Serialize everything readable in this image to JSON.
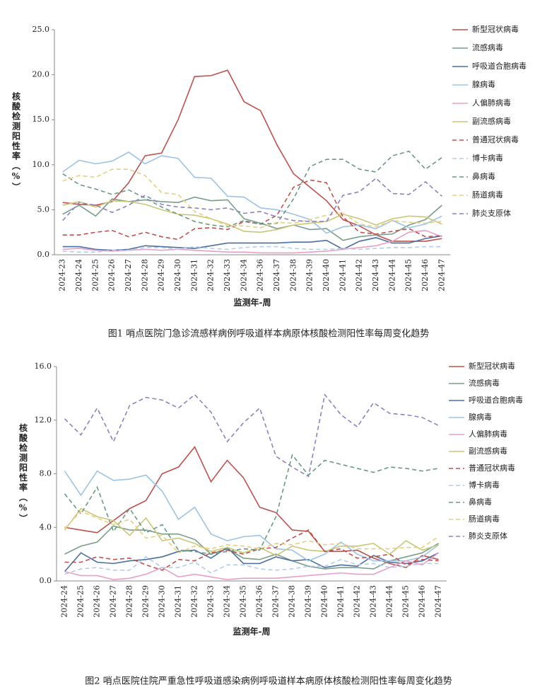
{
  "chart_data": [
    {
      "type": "line",
      "title": "图1   哨点医院门急诊流感样病例呼吸道样本病原体核酸检测阳性率每周变化趋势",
      "x_label": "监测年-周",
      "y_label": "核酸检测阳性率（%）",
      "categories": [
        "2024-23",
        "2024-24",
        "2024-25",
        "2024-26",
        "2024-27",
        "2024-28",
        "2024-29",
        "2024-30",
        "2024-31",
        "2024-32",
        "2024-33",
        "2024-34",
        "2024-36",
        "2024-37",
        "2024-38",
        "2024-39",
        "2024-40",
        "2024-41",
        "2024-42",
        "2024-43",
        "2024-44",
        "2024-45",
        "2024-46",
        "2024-47"
      ],
      "ylim": [
        0,
        25
      ],
      "yticks": [
        {
          "value": 0,
          "label": "0.0"
        },
        {
          "value": 5,
          "label": "5.0"
        },
        {
          "value": 10,
          "label": "10.0"
        },
        {
          "value": 15,
          "label": "15.0"
        },
        {
          "value": 20,
          "label": "20.0"
        },
        {
          "value": 25,
          "label": "25.0"
        }
      ],
      "series": [
        {
          "name": "新型冠状病毒",
          "color": "#c0504d",
          "dash": false,
          "values": [
            5.8,
            5.6,
            5.5,
            5.9,
            8.0,
            11.0,
            11.3,
            15.0,
            19.8,
            19.9,
            20.5,
            17.0,
            16.0,
            12.2,
            9.0,
            7.5,
            6.0,
            3.9,
            3.2,
            2.2,
            1.5,
            1.5,
            1.5,
            1.8
          ]
        },
        {
          "name": "流感病毒",
          "color": "#7a9e8a",
          "dash": false,
          "values": [
            4.5,
            5.5,
            4.3,
            6.2,
            5.9,
            6.1,
            5.9,
            5.8,
            6.4,
            6.0,
            6.1,
            4.0,
            3.5,
            2.9,
            3.3,
            2.8,
            2.9,
            1.6,
            2.0,
            2.2,
            2.3,
            3.3,
            3.9,
            5.5
          ]
        },
        {
          "name": "呼吸道合胞病毒",
          "color": "#4a6fa0",
          "dash": false,
          "values": [
            0.9,
            0.9,
            0.6,
            0.5,
            0.6,
            1.0,
            0.9,
            0.8,
            0.7,
            1.0,
            1.3,
            1.3,
            1.3,
            1.3,
            1.4,
            1.4,
            1.6,
            0.6,
            1.5,
            1.9,
            1.3,
            1.3,
            1.8,
            2.1
          ]
        },
        {
          "name": "腺病毒",
          "color": "#9dc3e6",
          "dash": false,
          "values": [
            9.2,
            10.5,
            10.1,
            10.4,
            11.4,
            10.1,
            11.0,
            10.7,
            8.6,
            8.5,
            6.5,
            6.4,
            5.2,
            5.0,
            4.5,
            3.9,
            2.4,
            3.1,
            3.3,
            2.9,
            3.8,
            3.0,
            3.4,
            4.3
          ]
        },
        {
          "name": "人偏肺病毒",
          "color": "#e6a0c8",
          "dash": false,
          "values": [
            0.6,
            0.7,
            0.5,
            0.4,
            0.5,
            0.6,
            0.5,
            0.6,
            0.5,
            0.4,
            0.3,
            0.3,
            0.2,
            0.2,
            0.2,
            0.3,
            0.4,
            0.6,
            0.8,
            1.0,
            1.5,
            2.5,
            2.7,
            2.0
          ]
        },
        {
          "name": "副流感病毒",
          "color": "#c8c878",
          "dash": false,
          "values": [
            5.5,
            5.9,
            5.3,
            6.0,
            5.9,
            5.6,
            5.0,
            4.5,
            4.4,
            4.0,
            3.4,
            2.6,
            2.5,
            2.8,
            3.3,
            3.5,
            3.7,
            4.5,
            4.0,
            3.3,
            4.0,
            4.3,
            4.2,
            3.4
          ]
        },
        {
          "name": "普通冠状病毒",
          "color": "#c0504d",
          "dash": true,
          "values": [
            2.2,
            2.2,
            2.5,
            2.7,
            2.0,
            2.5,
            2.0,
            1.7,
            2.9,
            3.0,
            2.8,
            3.7,
            3.4,
            4.4,
            7.5,
            8.3,
            8.0,
            4.2,
            2.5,
            2.3,
            2.6,
            2.9,
            2.0,
            2.1
          ]
        },
        {
          "name": "博卡病毒",
          "color": "#b4cde6",
          "dash": true,
          "values": [
            0.4,
            0.3,
            0.3,
            0.5,
            0.5,
            0.8,
            0.8,
            0.6,
            0.9,
            0.7,
            0.6,
            0.8,
            0.9,
            0.9,
            0.7,
            0.6,
            0.6,
            0.7,
            0.6,
            0.7,
            0.8,
            0.8,
            0.9,
            0.9
          ]
        },
        {
          "name": "鼻病毒",
          "color": "#6a9a80",
          "dash": true,
          "values": [
            9.0,
            7.8,
            7.3,
            6.7,
            7.2,
            6.3,
            5.3,
            4.5,
            3.7,
            3.3,
            3.1,
            3.8,
            3.4,
            3.5,
            6.2,
            9.8,
            10.6,
            10.6,
            9.5,
            9.2,
            11.0,
            11.5,
            9.5,
            10.8
          ]
        },
        {
          "name": "肠道病毒",
          "color": "#e6d080",
          "dash": true,
          "values": [
            8.2,
            8.8,
            8.6,
            9.5,
            9.5,
            8.8,
            6.9,
            6.7,
            4.8,
            4.0,
            3.2,
            3.2,
            3.0,
            3.6,
            3.5,
            3.9,
            4.4,
            4.6,
            3.4,
            3.1,
            3.8,
            3.6,
            3.5,
            3.7
          ]
        },
        {
          "name": "肺炎支原体",
          "color": "#9080c0",
          "dash": true,
          "values": [
            3.8,
            5.8,
            5.5,
            4.7,
            5.5,
            6.6,
            5.6,
            5.3,
            5.2,
            5.0,
            5.2,
            4.6,
            4.8,
            4.2,
            3.8,
            3.7,
            3.7,
            6.6,
            7.0,
            8.5,
            6.8,
            6.7,
            8.1,
            6.5
          ]
        }
      ]
    },
    {
      "type": "line",
      "title": "图2   哨点医院住院严重急性呼吸道感染病例呼吸道样本病原体核酸检测阳性率每周变化趋势",
      "x_label": "监测年-周",
      "y_label": "核酸检测阳性率（%）",
      "categories": [
        "2024-24",
        "2024-25",
        "2024-26",
        "2024-27",
        "2024-28",
        "2024-29",
        "2024-30",
        "2024-31",
        "2024-32",
        "2024-33",
        "2024-34",
        "2024-35",
        "2024-36",
        "2024-37",
        "2024-38",
        "2024-39",
        "2024-40",
        "2024-41",
        "2024-42",
        "2024-43",
        "2024-44",
        "2024-45",
        "2024-46",
        "2024-47"
      ],
      "ylim": [
        0,
        16
      ],
      "yticks": [
        {
          "value": 0,
          "label": "0.0"
        },
        {
          "value": 4,
          "label": "4.0"
        },
        {
          "value": 8,
          "label": "8.0"
        },
        {
          "value": 12,
          "label": "12.0"
        },
        {
          "value": 16,
          "label": "16.0"
        }
      ],
      "series": [
        {
          "name": "新型冠状病毒",
          "color": "#c0504d",
          "dash": false,
          "values": [
            4.0,
            3.8,
            3.6,
            4.5,
            5.4,
            6.0,
            8.0,
            8.5,
            10.0,
            7.4,
            9.0,
            7.7,
            5.5,
            5.1,
            3.8,
            3.7,
            2.2,
            2.2,
            2.3,
            1.7,
            1.3,
            1.0,
            1.9,
            1.6
          ]
        },
        {
          "name": "流感病毒",
          "color": "#7a9e8a",
          "dash": false,
          "values": [
            2.0,
            2.6,
            2.9,
            4.1,
            3.8,
            3.8,
            3.5,
            3.5,
            3.1,
            2.0,
            2.4,
            1.7,
            1.6,
            2.0,
            1.5,
            1.1,
            0.9,
            1.0,
            1.0,
            0.9,
            1.5,
            1.8,
            2.1,
            2.8
          ]
        },
        {
          "name": "呼吸道合胞病毒",
          "color": "#4a6fa0",
          "dash": false,
          "values": [
            0.7,
            2.1,
            1.4,
            1.3,
            1.5,
            1.6,
            1.8,
            2.2,
            2.3,
            1.7,
            2.5,
            1.3,
            1.3,
            1.8,
            1.5,
            1.6,
            1.0,
            1.2,
            1.1,
            1.9,
            1.4,
            1.3,
            1.5,
            2.1
          ]
        },
        {
          "name": "腺病毒",
          "color": "#9dc3e6",
          "dash": false,
          "values": [
            8.2,
            6.4,
            8.2,
            7.5,
            7.6,
            7.9,
            6.7,
            4.6,
            5.5,
            3.5,
            3.0,
            3.3,
            3.4,
            2.4,
            2.3,
            1.5,
            2.0,
            2.9,
            2.0,
            1.5,
            1.5,
            1.5,
            1.8,
            2.7
          ]
        },
        {
          "name": "人偏肺病毒",
          "color": "#e6a0c8",
          "dash": false,
          "values": [
            0.7,
            0.4,
            0.4,
            0.1,
            0.2,
            0.5,
            1.0,
            0.3,
            0.5,
            0.3,
            0.1,
            0.2,
            0.2,
            0.2,
            0.3,
            0.4,
            0.5,
            0.6,
            0.5,
            0.5,
            1.0,
            1.5,
            1.2,
            2.1
          ]
        },
        {
          "name": "副流感病毒",
          "color": "#c8c878",
          "dash": false,
          "values": [
            3.8,
            5.4,
            4.8,
            4.5,
            3.4,
            4.7,
            3.0,
            3.2,
            2.8,
            2.2,
            2.5,
            2.1,
            2.5,
            1.9,
            2.6,
            2.3,
            2.2,
            2.6,
            2.6,
            2.8,
            2.0,
            3.0,
            2.3,
            2.7
          ]
        },
        {
          "name": "普通冠状病毒",
          "color": "#c0504d",
          "dash": true,
          "values": [
            1.4,
            1.4,
            1.8,
            1.6,
            1.7,
            1.2,
            0.8,
            1.6,
            1.5,
            2.1,
            2.3,
            2.0,
            2.4,
            2.5,
            3.2,
            3.8,
            2.2,
            2.4,
            1.7,
            1.8,
            2.0,
            1.2,
            1.6,
            1.5
          ]
        },
        {
          "name": "博卡病毒",
          "color": "#b4cde6",
          "dash": true,
          "values": [
            0.5,
            0.9,
            1.0,
            0.8,
            0.8,
            1.8,
            1.0,
            1.0,
            1.4,
            0.6,
            1.2,
            1.2,
            0.9,
            0.8,
            0.9,
            1.1,
            1.1,
            1.6,
            1.2,
            1.3,
            1.0,
            1.1,
            1.3,
            1.3
          ]
        },
        {
          "name": "鼻病毒",
          "color": "#6a9a80",
          "dash": true,
          "values": [
            6.5,
            5.0,
            7.0,
            3.7,
            5.4,
            3.6,
            4.2,
            2.3,
            2.2,
            2.0,
            2.2,
            2.4,
            2.3,
            4.8,
            9.4,
            7.9,
            9.0,
            8.7,
            8.4,
            8.1,
            8.5,
            8.4,
            8.2,
            8.4
          ]
        },
        {
          "name": "肠道病毒",
          "color": "#e6d080",
          "dash": true,
          "values": [
            3.9,
            5.2,
            4.7,
            4.2,
            4.6,
            3.2,
            3.4,
            2.1,
            2.6,
            2.4,
            2.7,
            2.6,
            2.4,
            2.8,
            2.7,
            3.0,
            2.7,
            2.8,
            2.4,
            2.4,
            2.4,
            2.5,
            2.5,
            3.3
          ]
        },
        {
          "name": "肺炎支原体",
          "color": "#9080c0",
          "dash": true,
          "values": [
            12.1,
            10.9,
            12.9,
            10.4,
            13.1,
            13.7,
            13.5,
            12.9,
            13.9,
            12.6,
            10.4,
            11.8,
            12.9,
            9.3,
            8.5,
            7.8,
            13.9,
            12.4,
            11.5,
            13.3,
            12.5,
            12.4,
            12.2,
            11.6
          ]
        }
      ]
    }
  ]
}
